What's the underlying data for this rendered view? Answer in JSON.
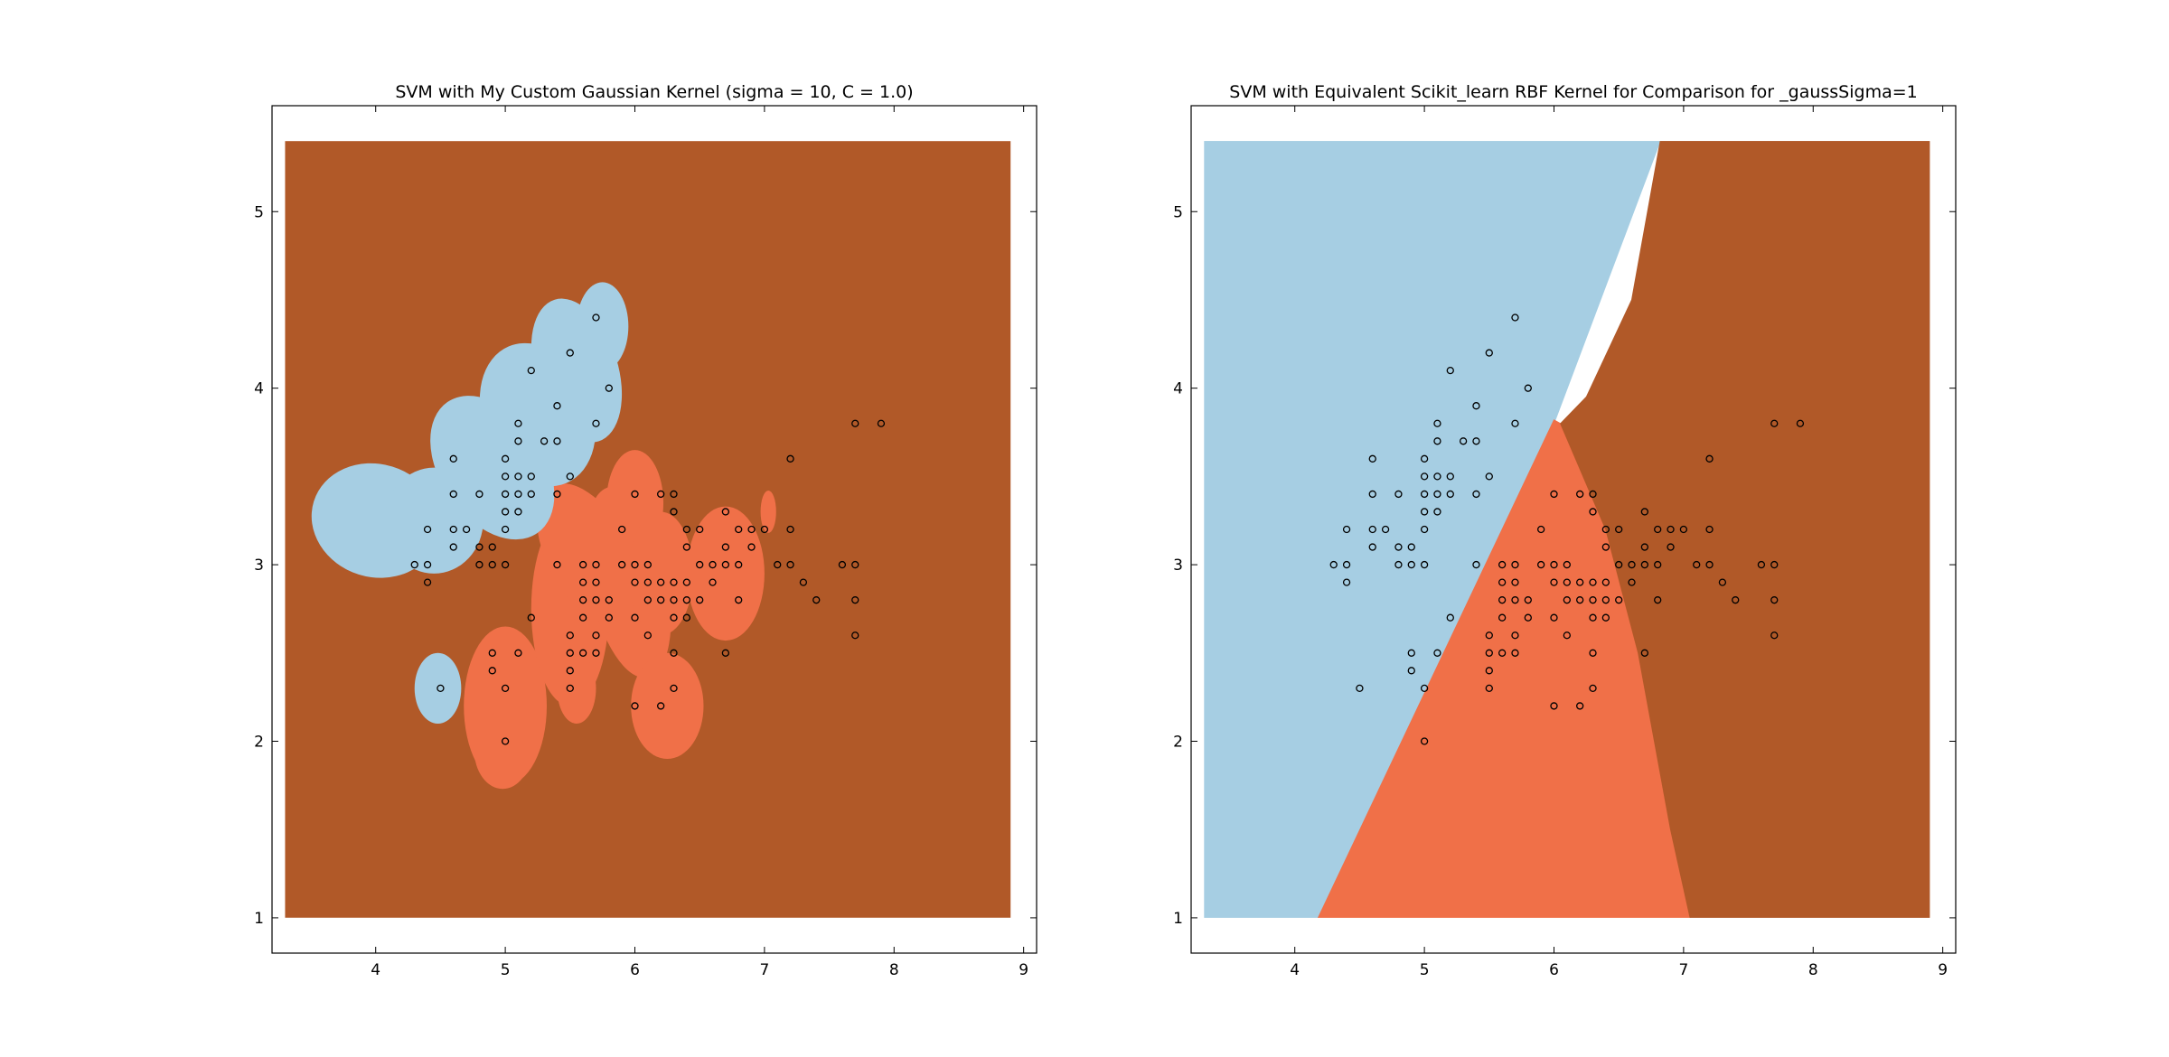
{
  "colors": {
    "region_class_0": "#a6cee3",
    "region_class_1": "#f07048",
    "region_class_2": "#b15928",
    "point_stroke": "#000000",
    "axes_border": "#000000"
  },
  "chart_data": [
    {
      "type": "scatter",
      "title": "SVM with My Custom Gaussian Kernel (sigma = 10, C = 1.0)",
      "xlabel": "",
      "ylabel": "",
      "xlim": [
        3.2,
        9.1
      ],
      "ylim": [
        0.8,
        5.6
      ],
      "region_xlim": [
        3.3,
        8.9
      ],
      "region_ylim": [
        1.0,
        5.4
      ],
      "xticks": [
        4,
        5,
        6,
        7,
        8,
        9
      ],
      "yticks": [
        1,
        2,
        3,
        4,
        5
      ],
      "grid": false,
      "background_class": 2,
      "blue_blobs": [
        [
          4.0,
          3.25,
          0.5,
          0.32,
          -0.3
        ],
        [
          4.45,
          3.25,
          0.38,
          0.3,
          0
        ],
        [
          4.9,
          3.55,
          0.4,
          0.45,
          0.6
        ],
        [
          5.25,
          3.85,
          0.42,
          0.42,
          0.4
        ],
        [
          5.55,
          4.1,
          0.32,
          0.42,
          0.3
        ],
        [
          5.75,
          4.35,
          0.2,
          0.25,
          0
        ],
        [
          4.48,
          2.3,
          0.18,
          0.2,
          0
        ]
      ],
      "orange_blobs": [
        [
          5.0,
          2.2,
          0.32,
          0.45,
          0
        ],
        [
          4.98,
          1.95,
          0.22,
          0.22,
          0
        ],
        [
          5.5,
          2.75,
          0.3,
          0.55,
          0
        ],
        [
          5.65,
          3.05,
          0.32,
          0.45,
          0.5
        ],
        [
          5.95,
          2.9,
          0.3,
          0.55,
          0.2
        ],
        [
          6.0,
          3.35,
          0.22,
          0.3,
          0
        ],
        [
          6.2,
          2.95,
          0.25,
          0.35,
          0
        ],
        [
          6.25,
          2.2,
          0.28,
          0.3,
          0
        ],
        [
          6.7,
          2.95,
          0.3,
          0.38,
          0
        ],
        [
          7.03,
          3.3,
          0.06,
          0.12,
          0
        ],
        [
          5.55,
          2.3,
          0.15,
          0.2,
          0
        ]
      ],
      "points": [
        [
          4.3,
          3.0
        ],
        [
          4.4,
          3.0
        ],
        [
          4.4,
          2.9
        ],
        [
          4.4,
          3.2
        ],
        [
          4.5,
          2.3
        ],
        [
          4.6,
          3.1
        ],
        [
          4.6,
          3.2
        ],
        [
          4.6,
          3.4
        ],
        [
          4.6,
          3.6
        ],
        [
          4.7,
          3.2
        ],
        [
          4.8,
          3.0
        ],
        [
          4.8,
          3.1
        ],
        [
          4.8,
          3.4
        ],
        [
          4.9,
          3.0
        ],
        [
          4.9,
          3.1
        ],
        [
          4.9,
          2.4
        ],
        [
          4.9,
          2.5
        ],
        [
          5.0,
          3.0
        ],
        [
          5.0,
          3.2
        ],
        [
          5.0,
          3.3
        ],
        [
          5.0,
          3.4
        ],
        [
          5.0,
          3.5
        ],
        [
          5.0,
          3.6
        ],
        [
          5.0,
          2.3
        ],
        [
          5.0,
          2.0
        ],
        [
          5.1,
          3.3
        ],
        [
          5.1,
          3.4
        ],
        [
          5.1,
          3.5
        ],
        [
          5.1,
          3.7
        ],
        [
          5.1,
          3.8
        ],
        [
          5.1,
          2.5
        ],
        [
          5.2,
          3.4
        ],
        [
          5.2,
          3.5
        ],
        [
          5.2,
          4.1
        ],
        [
          5.2,
          2.7
        ],
        [
          5.3,
          3.7
        ],
        [
          5.4,
          3.4
        ],
        [
          5.4,
          3.7
        ],
        [
          5.4,
          3.9
        ],
        [
          5.4,
          3.0
        ],
        [
          5.5,
          3.5
        ],
        [
          5.5,
          4.2
        ],
        [
          5.5,
          2.3
        ],
        [
          5.5,
          2.4
        ],
        [
          5.5,
          2.5
        ],
        [
          5.5,
          2.6
        ],
        [
          5.6,
          2.5
        ],
        [
          5.6,
          2.7
        ],
        [
          5.6,
          2.8
        ],
        [
          5.6,
          2.9
        ],
        [
          5.6,
          3.0
        ],
        [
          5.7,
          3.8
        ],
        [
          5.7,
          4.4
        ],
        [
          5.7,
          2.5
        ],
        [
          5.7,
          2.6
        ],
        [
          5.7,
          2.8
        ],
        [
          5.7,
          2.9
        ],
        [
          5.7,
          3.0
        ],
        [
          5.8,
          4.0
        ],
        [
          5.8,
          2.7
        ],
        [
          5.8,
          2.8
        ],
        [
          5.9,
          3.0
        ],
        [
          5.9,
          3.2
        ],
        [
          6.0,
          2.2
        ],
        [
          6.0,
          2.7
        ],
        [
          6.0,
          2.9
        ],
        [
          6.0,
          3.0
        ],
        [
          6.0,
          3.4
        ],
        [
          6.1,
          2.6
        ],
        [
          6.1,
          2.8
        ],
        [
          6.1,
          2.9
        ],
        [
          6.1,
          3.0
        ],
        [
          6.2,
          2.2
        ],
        [
          6.2,
          2.8
        ],
        [
          6.2,
          2.9
        ],
        [
          6.2,
          3.4
        ],
        [
          6.3,
          2.3
        ],
        [
          6.3,
          2.5
        ],
        [
          6.3,
          2.7
        ],
        [
          6.3,
          2.8
        ],
        [
          6.3,
          2.9
        ],
        [
          6.3,
          3.3
        ],
        [
          6.3,
          3.4
        ],
        [
          6.4,
          2.7
        ],
        [
          6.4,
          2.8
        ],
        [
          6.4,
          2.9
        ],
        [
          6.4,
          3.1
        ],
        [
          6.4,
          3.2
        ],
        [
          6.5,
          2.8
        ],
        [
          6.5,
          3.0
        ],
        [
          6.5,
          3.2
        ],
        [
          6.6,
          2.9
        ],
        [
          6.6,
          3.0
        ],
        [
          6.7,
          2.5
        ],
        [
          6.7,
          3.0
        ],
        [
          6.7,
          3.1
        ],
        [
          6.7,
          3.3
        ],
        [
          6.8,
          2.8
        ],
        [
          6.8,
          3.0
        ],
        [
          6.8,
          3.2
        ],
        [
          6.9,
          3.1
        ],
        [
          6.9,
          3.2
        ],
        [
          7.0,
          3.2
        ],
        [
          7.1,
          3.0
        ],
        [
          7.2,
          3.0
        ],
        [
          7.2,
          3.2
        ],
        [
          7.2,
          3.6
        ],
        [
          7.3,
          2.9
        ],
        [
          7.4,
          2.8
        ],
        [
          7.6,
          3.0
        ],
        [
          7.7,
          2.6
        ],
        [
          7.7,
          2.8
        ],
        [
          7.7,
          3.0
        ],
        [
          7.7,
          3.8
        ],
        [
          7.9,
          3.8
        ]
      ]
    },
    {
      "type": "scatter",
      "title": "SVM with Equivalent Scikit_learn RBF Kernel for Comparison for _gaussSigma=1",
      "xlabel": "",
      "ylabel": "",
      "xlim": [
        3.2,
        9.1
      ],
      "ylim": [
        0.8,
        5.6
      ],
      "region_xlim": [
        3.3,
        8.9
      ],
      "region_ylim": [
        1.0,
        5.4
      ],
      "xticks": [
        4,
        5,
        6,
        7,
        8,
        9
      ],
      "yticks": [
        1,
        2,
        3,
        4,
        5
      ],
      "grid": false,
      "regions": {
        "class_0": [
          [
            3.3,
            1.0
          ],
          [
            4.18,
            1.0
          ],
          [
            6.0,
            3.8
          ],
          [
            6.82,
            5.4
          ],
          [
            3.3,
            5.4
          ]
        ],
        "class_1": [
          [
            4.18,
            1.0
          ],
          [
            7.05,
            1.0
          ],
          [
            6.9,
            1.5
          ],
          [
            6.65,
            2.5
          ],
          [
            6.4,
            3.2
          ],
          [
            6.05,
            3.8
          ],
          [
            6.0,
            3.82
          ]
        ],
        "class_2": [
          [
            7.05,
            1.0
          ],
          [
            8.9,
            1.0
          ],
          [
            8.9,
            5.4
          ],
          [
            6.82,
            5.4
          ],
          [
            6.6,
            4.5
          ],
          [
            6.25,
            3.95
          ],
          [
            6.05,
            3.8
          ],
          [
            6.4,
            3.2
          ],
          [
            6.65,
            2.5
          ],
          [
            6.9,
            1.5
          ]
        ]
      },
      "points": [
        [
          4.3,
          3.0
        ],
        [
          4.4,
          3.0
        ],
        [
          4.4,
          2.9
        ],
        [
          4.4,
          3.2
        ],
        [
          4.5,
          2.3
        ],
        [
          4.6,
          3.1
        ],
        [
          4.6,
          3.2
        ],
        [
          4.6,
          3.4
        ],
        [
          4.6,
          3.6
        ],
        [
          4.7,
          3.2
        ],
        [
          4.8,
          3.0
        ],
        [
          4.8,
          3.1
        ],
        [
          4.8,
          3.4
        ],
        [
          4.9,
          3.0
        ],
        [
          4.9,
          3.1
        ],
        [
          4.9,
          2.4
        ],
        [
          4.9,
          2.5
        ],
        [
          5.0,
          3.0
        ],
        [
          5.0,
          3.2
        ],
        [
          5.0,
          3.3
        ],
        [
          5.0,
          3.4
        ],
        [
          5.0,
          3.5
        ],
        [
          5.0,
          3.6
        ],
        [
          5.0,
          2.3
        ],
        [
          5.0,
          2.0
        ],
        [
          5.1,
          3.3
        ],
        [
          5.1,
          3.4
        ],
        [
          5.1,
          3.5
        ],
        [
          5.1,
          3.7
        ],
        [
          5.1,
          3.8
        ],
        [
          5.1,
          2.5
        ],
        [
          5.2,
          3.4
        ],
        [
          5.2,
          3.5
        ],
        [
          5.2,
          4.1
        ],
        [
          5.2,
          2.7
        ],
        [
          5.3,
          3.7
        ],
        [
          5.4,
          3.4
        ],
        [
          5.4,
          3.7
        ],
        [
          5.4,
          3.9
        ],
        [
          5.4,
          3.0
        ],
        [
          5.5,
          3.5
        ],
        [
          5.5,
          4.2
        ],
        [
          5.5,
          2.3
        ],
        [
          5.5,
          2.4
        ],
        [
          5.5,
          2.5
        ],
        [
          5.5,
          2.6
        ],
        [
          5.6,
          2.5
        ],
        [
          5.6,
          2.7
        ],
        [
          5.6,
          2.8
        ],
        [
          5.6,
          2.9
        ],
        [
          5.6,
          3.0
        ],
        [
          5.7,
          3.8
        ],
        [
          5.7,
          4.4
        ],
        [
          5.7,
          2.5
        ],
        [
          5.7,
          2.6
        ],
        [
          5.7,
          2.8
        ],
        [
          5.7,
          2.9
        ],
        [
          5.7,
          3.0
        ],
        [
          5.8,
          4.0
        ],
        [
          5.8,
          2.7
        ],
        [
          5.8,
          2.8
        ],
        [
          5.9,
          3.0
        ],
        [
          5.9,
          3.2
        ],
        [
          6.0,
          2.2
        ],
        [
          6.0,
          2.7
        ],
        [
          6.0,
          2.9
        ],
        [
          6.0,
          3.0
        ],
        [
          6.0,
          3.4
        ],
        [
          6.1,
          2.6
        ],
        [
          6.1,
          2.8
        ],
        [
          6.1,
          2.9
        ],
        [
          6.1,
          3.0
        ],
        [
          6.2,
          2.2
        ],
        [
          6.2,
          2.8
        ],
        [
          6.2,
          2.9
        ],
        [
          6.2,
          3.4
        ],
        [
          6.3,
          2.3
        ],
        [
          6.3,
          2.5
        ],
        [
          6.3,
          2.7
        ],
        [
          6.3,
          2.8
        ],
        [
          6.3,
          2.9
        ],
        [
          6.3,
          3.3
        ],
        [
          6.3,
          3.4
        ],
        [
          6.4,
          2.7
        ],
        [
          6.4,
          2.8
        ],
        [
          6.4,
          2.9
        ],
        [
          6.4,
          3.1
        ],
        [
          6.4,
          3.2
        ],
        [
          6.5,
          2.8
        ],
        [
          6.5,
          3.0
        ],
        [
          6.5,
          3.2
        ],
        [
          6.6,
          2.9
        ],
        [
          6.6,
          3.0
        ],
        [
          6.7,
          2.5
        ],
        [
          6.7,
          3.0
        ],
        [
          6.7,
          3.1
        ],
        [
          6.7,
          3.3
        ],
        [
          6.8,
          2.8
        ],
        [
          6.8,
          3.0
        ],
        [
          6.8,
          3.2
        ],
        [
          6.9,
          3.1
        ],
        [
          6.9,
          3.2
        ],
        [
          7.0,
          3.2
        ],
        [
          7.1,
          3.0
        ],
        [
          7.2,
          3.0
        ],
        [
          7.2,
          3.2
        ],
        [
          7.2,
          3.6
        ],
        [
          7.3,
          2.9
        ],
        [
          7.4,
          2.8
        ],
        [
          7.6,
          3.0
        ],
        [
          7.7,
          2.6
        ],
        [
          7.7,
          2.8
        ],
        [
          7.7,
          3.0
        ],
        [
          7.7,
          3.8
        ],
        [
          7.9,
          3.8
        ]
      ]
    }
  ]
}
